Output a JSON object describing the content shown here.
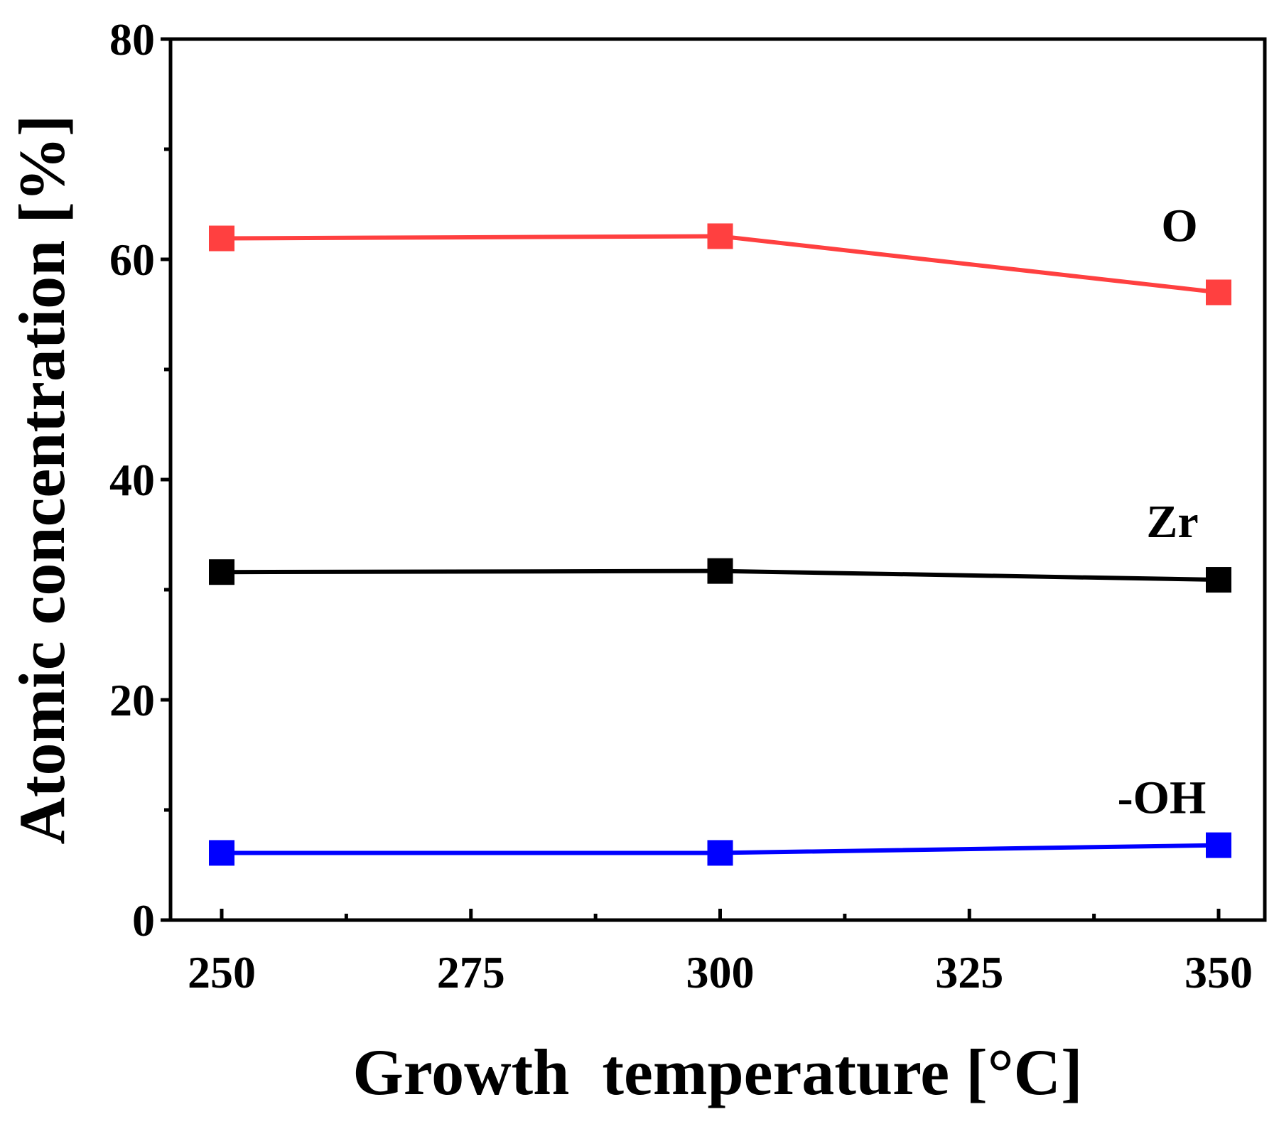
{
  "chart_data": {
    "type": "line",
    "title": "",
    "xlabel": "Growth  temperature [°C]",
    "ylabel": "Atomic concentration [%]",
    "xlim": [
      250,
      350
    ],
    "ylim": [
      0,
      80
    ],
    "xticks": [
      250,
      275,
      300,
      325,
      350
    ],
    "yticks": [
      0,
      20,
      40,
      60,
      80
    ],
    "grid": false,
    "legend": "none",
    "x": [
      250,
      300,
      350
    ],
    "series": [
      {
        "name": "O",
        "values": [
          61.9,
          62.1,
          57.0
        ],
        "color": "#ff4040",
        "marker": "square"
      },
      {
        "name": "Zr",
        "values": [
          31.6,
          31.7,
          30.9
        ],
        "color": "#000000",
        "marker": "square"
      },
      {
        "name": "-OH",
        "values": [
          6.1,
          6.1,
          6.8
        ],
        "color": "#0000ff",
        "marker": "square"
      }
    ]
  }
}
